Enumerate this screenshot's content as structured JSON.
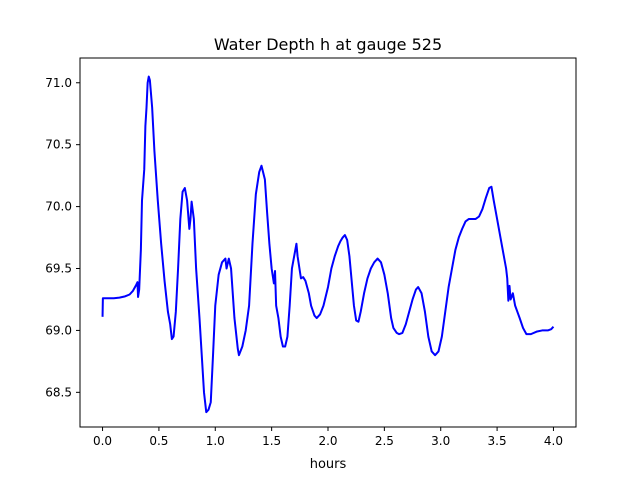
{
  "chart_data": {
    "type": "line",
    "title": "Water Depth h at gauge 525",
    "xlabel": "hours",
    "ylabel": "",
    "xlim": [
      -0.2,
      4.2
    ],
    "ylim": [
      68.22,
      71.2
    ],
    "grid": false,
    "x_ticks": [
      0.0,
      0.5,
      1.0,
      1.5,
      2.0,
      2.5,
      3.0,
      3.5,
      4.0
    ],
    "x_tick_labels": [
      "0.0",
      "0.5",
      "1.0",
      "1.5",
      "2.0",
      "2.5",
      "3.0",
      "3.5",
      "4.0"
    ],
    "y_ticks": [
      68.5,
      69.0,
      69.5,
      70.0,
      70.5,
      71.0
    ],
    "y_tick_labels": [
      "68.5",
      "69.0",
      "69.5",
      "70.0",
      "70.5",
      "71.0"
    ],
    "series": [
      {
        "color": "#0000ff",
        "points": [
          [
            0.0,
            69.11
          ],
          [
            0.003,
            69.26
          ],
          [
            0.05,
            69.26
          ],
          [
            0.1,
            69.26
          ],
          [
            0.15,
            69.265
          ],
          [
            0.2,
            69.275
          ],
          [
            0.24,
            69.29
          ],
          [
            0.27,
            69.32
          ],
          [
            0.3,
            69.37
          ],
          [
            0.31,
            69.39
          ],
          [
            0.315,
            69.27
          ],
          [
            0.325,
            69.33
          ],
          [
            0.34,
            69.65
          ],
          [
            0.35,
            70.05
          ],
          [
            0.37,
            70.3
          ],
          [
            0.38,
            70.65
          ],
          [
            0.39,
            70.8
          ],
          [
            0.4,
            71.0
          ],
          [
            0.41,
            71.05
          ],
          [
            0.42,
            71.02
          ],
          [
            0.44,
            70.8
          ],
          [
            0.46,
            70.45
          ],
          [
            0.49,
            70.05
          ],
          [
            0.52,
            69.7
          ],
          [
            0.55,
            69.4
          ],
          [
            0.58,
            69.15
          ],
          [
            0.6,
            69.05
          ],
          [
            0.615,
            68.93
          ],
          [
            0.63,
            68.95
          ],
          [
            0.65,
            69.15
          ],
          [
            0.67,
            69.5
          ],
          [
            0.69,
            69.9
          ],
          [
            0.71,
            70.12
          ],
          [
            0.73,
            70.15
          ],
          [
            0.75,
            70.05
          ],
          [
            0.77,
            69.82
          ],
          [
            0.78,
            69.9
          ],
          [
            0.79,
            70.04
          ],
          [
            0.81,
            69.9
          ],
          [
            0.83,
            69.5
          ],
          [
            0.86,
            69.1
          ],
          [
            0.88,
            68.8
          ],
          [
            0.9,
            68.5
          ],
          [
            0.92,
            68.34
          ],
          [
            0.94,
            68.36
          ],
          [
            0.96,
            68.42
          ],
          [
            0.98,
            68.8
          ],
          [
            1.0,
            69.2
          ],
          [
            1.03,
            69.45
          ],
          [
            1.06,
            69.55
          ],
          [
            1.09,
            69.58
          ],
          [
            1.1,
            69.5
          ],
          [
            1.12,
            69.58
          ],
          [
            1.14,
            69.5
          ],
          [
            1.17,
            69.1
          ],
          [
            1.2,
            68.85
          ],
          [
            1.21,
            68.8
          ],
          [
            1.24,
            68.87
          ],
          [
            1.27,
            69.0
          ],
          [
            1.3,
            69.2
          ],
          [
            1.33,
            69.7
          ],
          [
            1.36,
            70.1
          ],
          [
            1.39,
            70.28
          ],
          [
            1.41,
            70.33
          ],
          [
            1.44,
            70.22
          ],
          [
            1.46,
            69.95
          ],
          [
            1.48,
            69.7
          ],
          [
            1.5,
            69.5
          ],
          [
            1.52,
            69.38
          ],
          [
            1.53,
            69.48
          ],
          [
            1.54,
            69.2
          ],
          [
            1.56,
            69.1
          ],
          [
            1.58,
            68.95
          ],
          [
            1.6,
            68.87
          ],
          [
            1.62,
            68.87
          ],
          [
            1.64,
            68.95
          ],
          [
            1.66,
            69.2
          ],
          [
            1.68,
            69.5
          ],
          [
            1.71,
            69.65
          ],
          [
            1.72,
            69.7
          ],
          [
            1.73,
            69.6
          ],
          [
            1.76,
            69.42
          ],
          [
            1.78,
            69.43
          ],
          [
            1.8,
            69.4
          ],
          [
            1.83,
            69.3
          ],
          [
            1.85,
            69.2
          ],
          [
            1.88,
            69.12
          ],
          [
            1.9,
            69.1
          ],
          [
            1.93,
            69.13
          ],
          [
            1.96,
            69.2
          ],
          [
            2.0,
            69.35
          ],
          [
            2.03,
            69.5
          ],
          [
            2.06,
            69.6
          ],
          [
            2.09,
            69.68
          ],
          [
            2.11,
            69.72
          ],
          [
            2.13,
            69.75
          ],
          [
            2.15,
            69.77
          ],
          [
            2.17,
            69.73
          ],
          [
            2.19,
            69.6
          ],
          [
            2.21,
            69.4
          ],
          [
            2.23,
            69.2
          ],
          [
            2.25,
            69.08
          ],
          [
            2.27,
            69.07
          ],
          [
            2.29,
            69.15
          ],
          [
            2.32,
            69.3
          ],
          [
            2.35,
            69.42
          ],
          [
            2.38,
            69.5
          ],
          [
            2.41,
            69.55
          ],
          [
            2.44,
            69.58
          ],
          [
            2.47,
            69.55
          ],
          [
            2.5,
            69.45
          ],
          [
            2.53,
            69.3
          ],
          [
            2.56,
            69.1
          ],
          [
            2.58,
            69.02
          ],
          [
            2.61,
            68.98
          ],
          [
            2.63,
            68.97
          ],
          [
            2.66,
            68.98
          ],
          [
            2.69,
            69.05
          ],
          [
            2.72,
            69.15
          ],
          [
            2.75,
            69.25
          ],
          [
            2.78,
            69.33
          ],
          [
            2.8,
            69.35
          ],
          [
            2.83,
            69.3
          ],
          [
            2.86,
            69.15
          ],
          [
            2.89,
            68.95
          ],
          [
            2.92,
            68.83
          ],
          [
            2.95,
            68.8
          ],
          [
            2.98,
            68.83
          ],
          [
            3.01,
            68.95
          ],
          [
            3.04,
            69.15
          ],
          [
            3.07,
            69.35
          ],
          [
            3.1,
            69.5
          ],
          [
            3.13,
            69.65
          ],
          [
            3.16,
            69.75
          ],
          [
            3.19,
            69.82
          ],
          [
            3.22,
            69.88
          ],
          [
            3.25,
            69.9
          ],
          [
            3.28,
            69.9
          ],
          [
            3.31,
            69.9
          ],
          [
            3.34,
            69.92
          ],
          [
            3.37,
            69.98
          ],
          [
            3.4,
            70.07
          ],
          [
            3.43,
            70.15
          ],
          [
            3.45,
            70.16
          ],
          [
            3.47,
            70.05
          ],
          [
            3.5,
            69.9
          ],
          [
            3.53,
            69.75
          ],
          [
            3.56,
            69.6
          ],
          [
            3.58,
            69.5
          ],
          [
            3.59,
            69.42
          ],
          [
            3.6,
            69.24
          ],
          [
            3.61,
            69.36
          ],
          [
            3.62,
            69.25
          ],
          [
            3.64,
            69.3
          ],
          [
            3.66,
            69.2
          ],
          [
            3.68,
            69.15
          ],
          [
            3.7,
            69.1
          ],
          [
            3.73,
            69.02
          ],
          [
            3.76,
            68.97
          ],
          [
            3.8,
            68.97
          ],
          [
            3.85,
            68.99
          ],
          [
            3.9,
            69.0
          ],
          [
            3.95,
            69.0
          ],
          [
            3.98,
            69.01
          ],
          [
            4.0,
            69.03
          ]
        ]
      }
    ]
  }
}
